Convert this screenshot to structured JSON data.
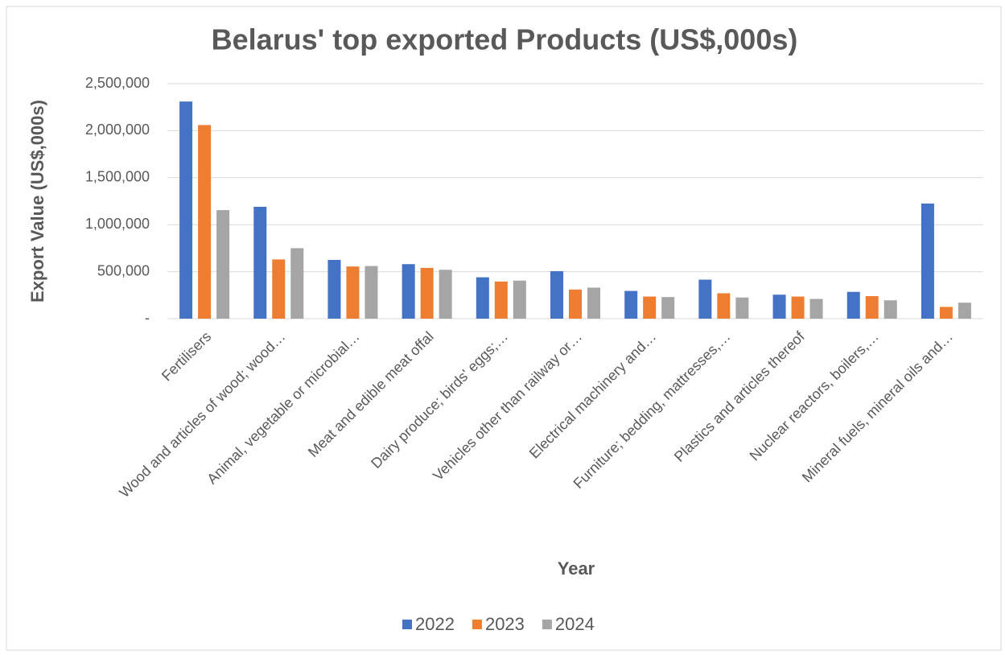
{
  "chart_data": {
    "type": "bar",
    "title": "Belarus' top exported Products (US$,000s)",
    "x_label": "Year",
    "y_label": "Export Value (US$,000s)",
    "categories": [
      "Fertilisers",
      "Wood and articles of wood; wood…",
      "Animal, vegetable or microbial…",
      "Meat and edible meat offal",
      "Dairy produce; birds' eggs;…",
      "Vehicles other than railway or…",
      "Electrical machinery and…",
      "Furniture; bedding, mattresses,…",
      "Plastics and articles thereof",
      "Nuclear reactors, boilers,…",
      "Mineral fuels, mineral oils and…"
    ],
    "series": [
      {
        "name": "2022",
        "color": "#4472c4",
        "values": [
          2310000,
          1190000,
          625000,
          580000,
          440000,
          505000,
          295000,
          415000,
          255000,
          285000,
          1225000
        ]
      },
      {
        "name": "2023",
        "color": "#ed7d31",
        "values": [
          2060000,
          630000,
          555000,
          540000,
          395000,
          310000,
          235000,
          270000,
          235000,
          240000,
          125000
        ]
      },
      {
        "name": "2024",
        "color": "#a5a5a5",
        "values": [
          1155000,
          750000,
          560000,
          520000,
          405000,
          330000,
          230000,
          225000,
          210000,
          195000,
          170000
        ]
      }
    ],
    "ylim": [
      0,
      2500000
    ],
    "yticks": [
      {
        "value": 0,
        "label": "-"
      },
      {
        "value": 500000,
        "label": "500,000"
      },
      {
        "value": 1000000,
        "label": "1,000,000"
      },
      {
        "value": 1500000,
        "label": "1,500,000"
      },
      {
        "value": 2000000,
        "label": "2,000,000"
      },
      {
        "value": 2500000,
        "label": "2,500,000"
      }
    ],
    "grid": true,
    "legend": "bottom"
  }
}
